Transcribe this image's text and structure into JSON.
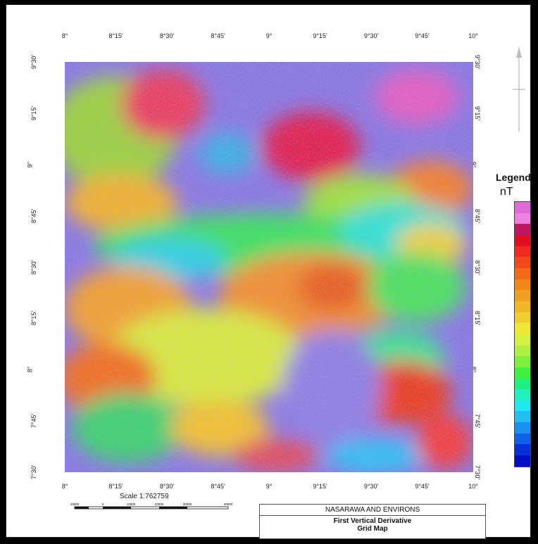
{
  "map": {
    "top_ticks": [
      "8°",
      "8°15'",
      "8°30'",
      "8°45'",
      "9°",
      "9°15'",
      "9°30'",
      "9°45'",
      "10°"
    ],
    "bottom_ticks": [
      "8°",
      "8°15'",
      "8°30'",
      "8°45'",
      "9°",
      "9°15'",
      "9°30'",
      "9°45'",
      "10°"
    ],
    "left_ticks": [
      "9°30'",
      "9°15'",
      "9°",
      "8°45'",
      "8°30'",
      "8°15'",
      "8°",
      "7°45'",
      "7°30'"
    ],
    "right_ticks": [
      "9°30'",
      "9°15'",
      "9°",
      "8°45'",
      "8°30'",
      "8°15'",
      "8°",
      "7°45'",
      "7°30'"
    ]
  },
  "legend": {
    "title": "Legend",
    "unit": "nT",
    "colors": [
      "#e06ad8",
      "#f080e0",
      "#c01860",
      "#e01020",
      "#f02a20",
      "#f04a1a",
      "#f06a18",
      "#f08818",
      "#f0a020",
      "#f0b828",
      "#f0d030",
      "#f0e838",
      "#d8f040",
      "#b0f040",
      "#80f040",
      "#40f040",
      "#20f080",
      "#20f0c0",
      "#20e8f0",
      "#20c0f0",
      "#1890f0",
      "#1060e8",
      "#0830d8",
      "#0010c0"
    ]
  },
  "scale": {
    "label": "Scale 1:762759",
    "bar_labels": [
      "10000",
      "0",
      "10000",
      "20000",
      "30000",
      "40000"
    ]
  },
  "title": {
    "line1": "NASARAWA AND ENVIRONS",
    "line2": "First Vertical Derivative",
    "line3": "Grid Map"
  }
}
